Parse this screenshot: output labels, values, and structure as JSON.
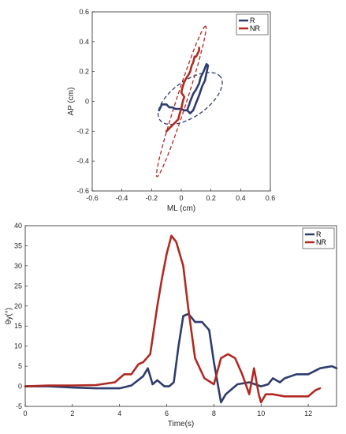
{
  "colors": {
    "R": "#2e3c6e",
    "NR": "#b02a22"
  },
  "chart_data": [
    {
      "type": "line",
      "xlabel": "ML (cm)",
      "ylabel": "AP (cm)",
      "xlim": [
        -0.6,
        0.6
      ],
      "ylim": [
        -0.6,
        0.6
      ],
      "xticks": [
        "-0.6",
        "-0.4",
        "-0.2",
        "0",
        "0.2",
        "0.4",
        "0.6"
      ],
      "yticks": [
        "-0.6",
        "-0.4",
        "-0.2",
        "0",
        "0.2",
        "0.4",
        "0.6"
      ],
      "legend": {
        "position": "top-right",
        "labels": [
          "R",
          "NR"
        ]
      },
      "grid": false,
      "series": [
        {
          "name": "R",
          "x": [
            -0.15,
            -0.13,
            -0.1,
            -0.08,
            -0.06,
            -0.04,
            -0.02,
            0.0,
            0.02,
            0.04,
            0.06,
            0.08,
            0.1,
            0.12,
            0.14,
            0.16,
            0.18,
            0.17,
            0.15,
            0.13,
            0.12,
            0.1,
            0.08,
            0.06,
            0.04
          ],
          "y": [
            -0.06,
            -0.02,
            -0.02,
            -0.04,
            -0.04,
            -0.05,
            -0.05,
            -0.05,
            -0.06,
            -0.06,
            -0.08,
            -0.06,
            -0.01,
            0.04,
            0.1,
            0.14,
            0.24,
            0.25,
            0.2,
            0.16,
            0.12,
            0.08,
            0.05,
            0.0,
            -0.06
          ]
        },
        {
          "name": "NR",
          "x": [
            -0.1,
            -0.08,
            -0.06,
            -0.04,
            -0.02,
            -0.01,
            0.0,
            0.01,
            0.02,
            0.0,
            0.01,
            0.02,
            0.03,
            0.05,
            0.06,
            0.07,
            0.08,
            0.09,
            0.1,
            0.11,
            0.12,
            0.12
          ],
          "y": [
            -0.2,
            -0.18,
            -0.16,
            -0.14,
            -0.12,
            -0.08,
            -0.05,
            0.0,
            0.03,
            0.06,
            0.1,
            0.13,
            0.15,
            0.18,
            0.2,
            0.24,
            0.26,
            0.3,
            0.3,
            0.32,
            0.34,
            0.36
          ]
        }
      ],
      "ellipses": [
        {
          "series": "R",
          "center": [
            0.06,
            0.02
          ],
          "semi_axes": [
            0.25,
            0.12
          ],
          "angle_deg": 35
        },
        {
          "series": "NR",
          "center": [
            0.0,
            0.0
          ],
          "semi_axes": [
            0.53,
            0.035
          ],
          "angle_deg": 72
        }
      ]
    },
    {
      "type": "line",
      "xlabel": "Time(s)",
      "ylabel": "θy(°)",
      "xlim": [
        0,
        13.2
      ],
      "ylim": [
        -5,
        40
      ],
      "xticks": [
        "0",
        "2",
        "4",
        "6",
        "8",
        "10",
        "12"
      ],
      "yticks": [
        "-5",
        "0",
        "5",
        "10",
        "15",
        "20",
        "25",
        "30",
        "35",
        "40"
      ],
      "legend": {
        "position": "top-right",
        "labels": [
          "R",
          "NR"
        ]
      },
      "grid": false,
      "series": [
        {
          "name": "R",
          "x": [
            0,
            1,
            2,
            3,
            4,
            4.5,
            5.0,
            5.2,
            5.4,
            5.6,
            5.9,
            6.1,
            6.3,
            6.5,
            6.7,
            6.9,
            7.0,
            7.2,
            7.5,
            7.8,
            8.0,
            8.3,
            8.5,
            8.7,
            9.0,
            9.5,
            10.0,
            10.3,
            10.5,
            10.8,
            11.0,
            11.5,
            12.0,
            12.5,
            13.0,
            13.2
          ],
          "y": [
            0,
            0,
            -0.3,
            -0.5,
            -0.5,
            0.2,
            2.5,
            4.5,
            0.5,
            1.5,
            0,
            0,
            1,
            10,
            17.5,
            18,
            17.5,
            16,
            16,
            14,
            6,
            -4,
            -2,
            -1,
            0.5,
            1,
            0,
            0.5,
            2,
            1,
            2,
            3,
            3,
            4.5,
            5,
            4.5
          ]
        },
        {
          "name": "NR",
          "x": [
            0,
            1,
            2,
            3,
            3.8,
            4.2,
            4.5,
            4.8,
            5.0,
            5.3,
            5.6,
            5.8,
            6.0,
            6.2,
            6.4,
            6.7,
            6.9,
            7.2,
            7.6,
            8.0,
            8.3,
            8.6,
            8.9,
            9.2,
            9.5,
            9.7,
            9.9,
            10.0,
            10.2,
            10.5,
            11.0,
            11.5,
            12.0,
            12.3,
            12.5
          ],
          "y": [
            0,
            0.2,
            0.2,
            0.3,
            1,
            3,
            3,
            5.5,
            6,
            8,
            20,
            27,
            33,
            37.5,
            36,
            30,
            20,
            7,
            2,
            0.5,
            7,
            8,
            7,
            3,
            -2,
            4.5,
            -2,
            -4,
            -2,
            -2,
            -2.5,
            -2.5,
            -2.5,
            -1,
            -0.5
          ]
        }
      ]
    }
  ]
}
